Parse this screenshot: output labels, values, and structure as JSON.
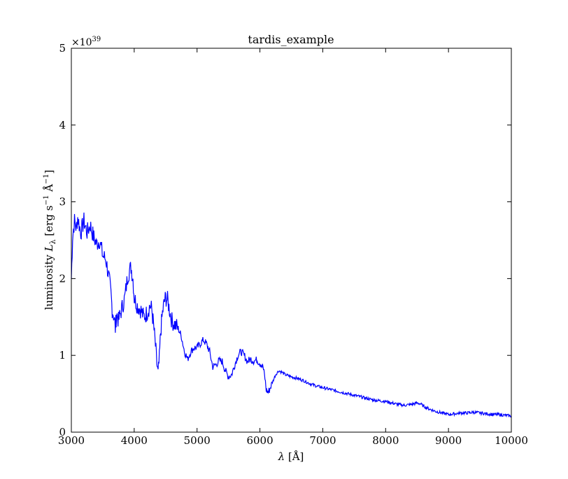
{
  "chart_data": {
    "type": "line",
    "title": "tardis_example",
    "xlabel_prefix": "λ",
    "xlabel_unit": "[Å]",
    "ylabel_text": "luminosity ",
    "ylabel_symbol": "L",
    "ylabel_sub": "λ",
    "ylabel_unit_open": " [erg s",
    "ylabel_unit_sup1": "−1",
    "ylabel_unit_mid": " Å",
    "ylabel_unit_sup2": "−1",
    "ylabel_unit_close": "]",
    "y_offset_base": "×10",
    "y_offset_exp": "39",
    "xlim": [
      3000,
      10000
    ],
    "ylim": [
      0,
      5
    ],
    "x_ticks": [
      3000,
      4000,
      5000,
      6000,
      7000,
      8000,
      9000,
      10000
    ],
    "x_tick_labels": [
      "3000",
      "4000",
      "5000",
      "6000",
      "7000",
      "8000",
      "9000",
      "10000"
    ],
    "y_ticks": [
      0,
      1,
      2,
      3,
      4,
      5
    ],
    "y_tick_labels": [
      "0",
      "1",
      "2",
      "3",
      "4",
      "5"
    ],
    "grid": false,
    "line_color": "#0000ff",
    "series": [
      {
        "x": [
          3000,
          3020,
          3050,
          3080,
          3100,
          3150,
          3200,
          3250,
          3300,
          3350,
          3400,
          3450,
          3500,
          3550,
          3600,
          3630,
          3650,
          3680,
          3700,
          3720,
          3750,
          3800,
          3850,
          3900,
          3950,
          3980,
          4000,
          4050,
          4100,
          4150,
          4200,
          4250,
          4280,
          4300,
          4330,
          4360,
          4380,
          4400,
          4420,
          4450,
          4480,
          4500,
          4530,
          4560,
          4600,
          4650,
          4700,
          4750,
          4800,
          4850,
          4900,
          4950,
          5000,
          5050,
          5100,
          5150,
          5200,
          5250,
          5300,
          5350,
          5400,
          5450,
          5500,
          5550,
          5600,
          5650,
          5700,
          5750,
          5800,
          5850,
          5900,
          5950,
          6000,
          6050,
          6080,
          6100,
          6130,
          6150,
          6200,
          6250,
          6300,
          6350,
          6400,
          6500,
          6600,
          6700,
          6800,
          6900,
          7000,
          7100,
          7200,
          7300,
          7400,
          7500,
          7600,
          7700,
          7800,
          7900,
          8000,
          8100,
          8200,
          8300,
          8400,
          8500,
          8550,
          8600,
          8700,
          8800,
          8900,
          9000,
          9100,
          9200,
          9300,
          9400,
          9500,
          9600,
          9700,
          9800,
          9900,
          10000
        ],
        "y": [
          2.0,
          2.55,
          2.75,
          2.65,
          2.8,
          2.6,
          2.75,
          2.6,
          2.7,
          2.55,
          2.45,
          2.5,
          2.3,
          2.25,
          2.0,
          1.8,
          1.6,
          1.5,
          1.35,
          1.55,
          1.45,
          1.6,
          1.75,
          2.05,
          2.15,
          2.0,
          1.75,
          1.65,
          1.6,
          1.5,
          1.55,
          1.65,
          1.6,
          1.45,
          1.2,
          0.9,
          0.75,
          0.95,
          1.3,
          1.55,
          1.7,
          1.75,
          1.72,
          1.6,
          1.45,
          1.4,
          1.35,
          1.25,
          1.05,
          0.95,
          1.05,
          1.1,
          1.1,
          1.15,
          1.2,
          1.15,
          1.05,
          0.85,
          0.88,
          0.93,
          0.92,
          0.8,
          0.72,
          0.75,
          0.88,
          1.0,
          1.05,
          1.0,
          0.92,
          0.95,
          0.93,
          0.94,
          0.9,
          0.85,
          0.7,
          0.55,
          0.52,
          0.55,
          0.65,
          0.75,
          0.8,
          0.78,
          0.75,
          0.72,
          0.7,
          0.67,
          0.63,
          0.6,
          0.58,
          0.56,
          0.54,
          0.52,
          0.5,
          0.48,
          0.46,
          0.44,
          0.42,
          0.41,
          0.4,
          0.38,
          0.36,
          0.35,
          0.36,
          0.38,
          0.37,
          0.34,
          0.3,
          0.27,
          0.25,
          0.23,
          0.24,
          0.25,
          0.25,
          0.26,
          0.25,
          0.24,
          0.23,
          0.23,
          0.22,
          0.21
        ]
      }
    ]
  }
}
